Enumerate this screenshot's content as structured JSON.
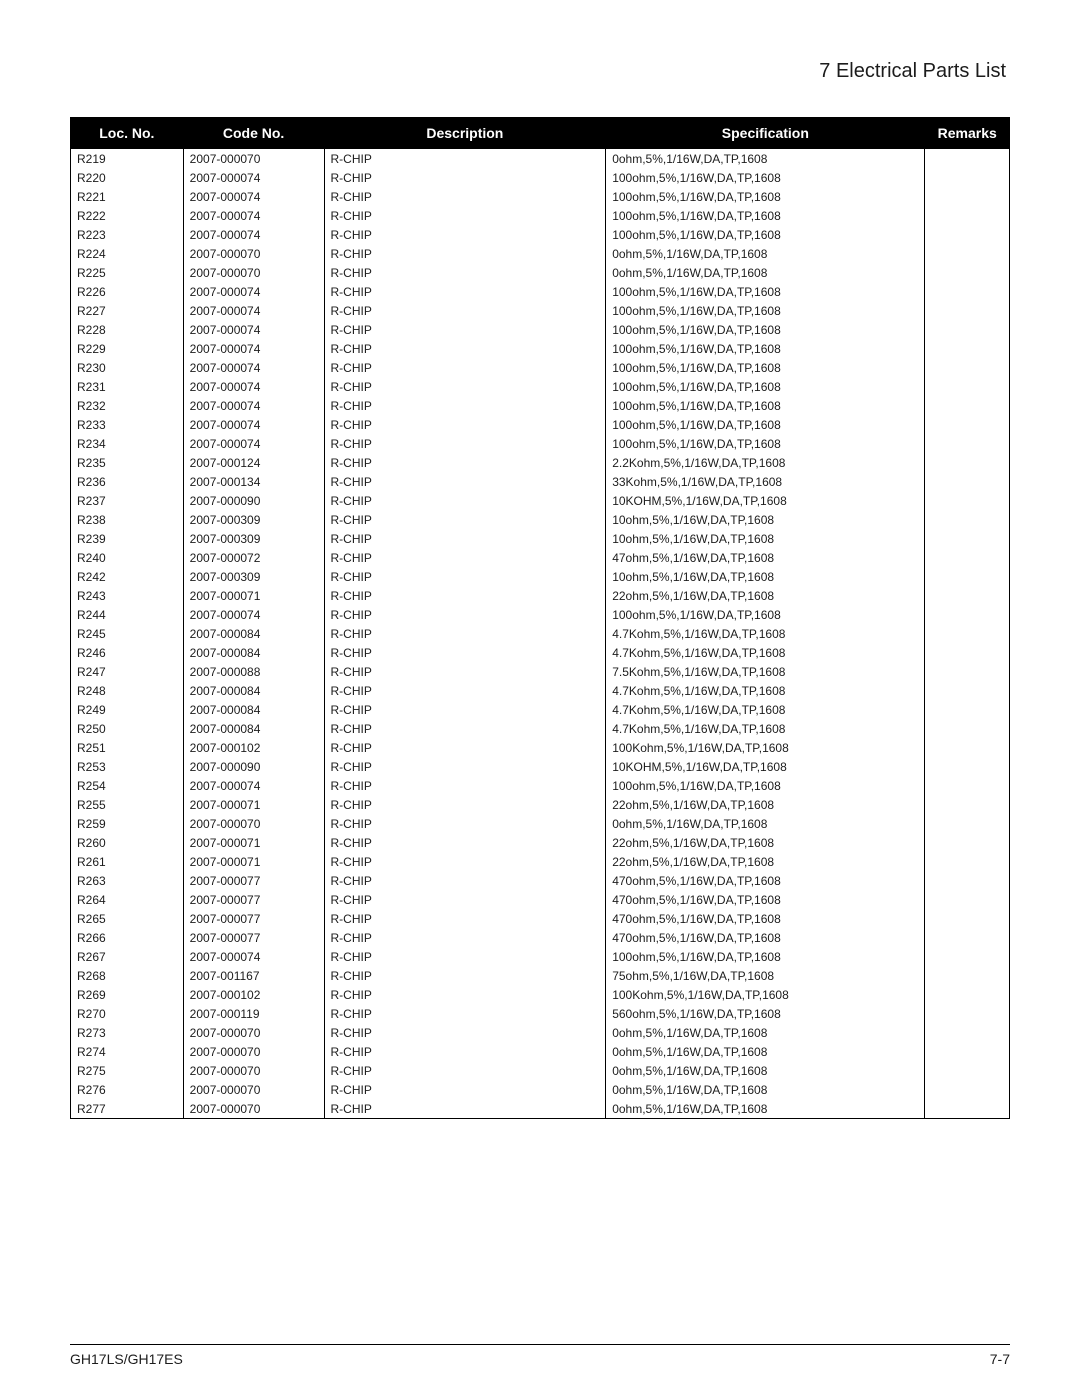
{
  "page": {
    "section_title": "7 Electrical Parts List",
    "footer_left": "GH17LS/GH17ES",
    "footer_right": "7-7"
  },
  "table": {
    "columns": {
      "loc": "Loc. No.",
      "code": "Code No.",
      "desc": "Description",
      "spec": "Specification",
      "rem": "Remarks"
    },
    "col_widths_pct": [
      12,
      15,
      30,
      34,
      9
    ],
    "header_bg": "#000000",
    "header_fg": "#ffffff",
    "border_color": "#000000",
    "body_font_size_pt": 9,
    "header_font_size_pt": 10.5,
    "rows": [
      {
        "loc": "R219",
        "code": "2007-000070",
        "desc": "R-CHIP",
        "spec": "0ohm,5%,1/16W,DA,TP,1608",
        "rem": ""
      },
      {
        "loc": "R220",
        "code": "2007-000074",
        "desc": "R-CHIP",
        "spec": "100ohm,5%,1/16W,DA,TP,1608",
        "rem": ""
      },
      {
        "loc": "R221",
        "code": "2007-000074",
        "desc": "R-CHIP",
        "spec": "100ohm,5%,1/16W,DA,TP,1608",
        "rem": ""
      },
      {
        "loc": "R222",
        "code": "2007-000074",
        "desc": "R-CHIP",
        "spec": "100ohm,5%,1/16W,DA,TP,1608",
        "rem": ""
      },
      {
        "loc": "R223",
        "code": "2007-000074",
        "desc": "R-CHIP",
        "spec": "100ohm,5%,1/16W,DA,TP,1608",
        "rem": ""
      },
      {
        "loc": "R224",
        "code": "2007-000070",
        "desc": "R-CHIP",
        "spec": "0ohm,5%,1/16W,DA,TP,1608",
        "rem": ""
      },
      {
        "loc": "R225",
        "code": "2007-000070",
        "desc": "R-CHIP",
        "spec": "0ohm,5%,1/16W,DA,TP,1608",
        "rem": ""
      },
      {
        "loc": "R226",
        "code": "2007-000074",
        "desc": "R-CHIP",
        "spec": "100ohm,5%,1/16W,DA,TP,1608",
        "rem": ""
      },
      {
        "loc": "R227",
        "code": "2007-000074",
        "desc": "R-CHIP",
        "spec": "100ohm,5%,1/16W,DA,TP,1608",
        "rem": ""
      },
      {
        "loc": "R228",
        "code": "2007-000074",
        "desc": "R-CHIP",
        "spec": "100ohm,5%,1/16W,DA,TP,1608",
        "rem": ""
      },
      {
        "loc": "R229",
        "code": "2007-000074",
        "desc": "R-CHIP",
        "spec": "100ohm,5%,1/16W,DA,TP,1608",
        "rem": ""
      },
      {
        "loc": "R230",
        "code": "2007-000074",
        "desc": "R-CHIP",
        "spec": "100ohm,5%,1/16W,DA,TP,1608",
        "rem": ""
      },
      {
        "loc": "R231",
        "code": "2007-000074",
        "desc": "R-CHIP",
        "spec": "100ohm,5%,1/16W,DA,TP,1608",
        "rem": ""
      },
      {
        "loc": "R232",
        "code": "2007-000074",
        "desc": "R-CHIP",
        "spec": "100ohm,5%,1/16W,DA,TP,1608",
        "rem": ""
      },
      {
        "loc": "R233",
        "code": "2007-000074",
        "desc": "R-CHIP",
        "spec": "100ohm,5%,1/16W,DA,TP,1608",
        "rem": ""
      },
      {
        "loc": "R234",
        "code": "2007-000074",
        "desc": "R-CHIP",
        "spec": "100ohm,5%,1/16W,DA,TP,1608",
        "rem": ""
      },
      {
        "loc": "R235",
        "code": "2007-000124",
        "desc": "R-CHIP",
        "spec": "2.2Kohm,5%,1/16W,DA,TP,1608",
        "rem": ""
      },
      {
        "loc": "R236",
        "code": "2007-000134",
        "desc": "R-CHIP",
        "spec": "33Kohm,5%,1/16W,DA,TP,1608",
        "rem": ""
      },
      {
        "loc": "R237",
        "code": "2007-000090",
        "desc": "R-CHIP",
        "spec": "10KOHM,5%,1/16W,DA,TP,1608",
        "rem": ""
      },
      {
        "loc": "R238",
        "code": "2007-000309",
        "desc": "R-CHIP",
        "spec": "10ohm,5%,1/16W,DA,TP,1608",
        "rem": ""
      },
      {
        "loc": "R239",
        "code": "2007-000309",
        "desc": "R-CHIP",
        "spec": "10ohm,5%,1/16W,DA,TP,1608",
        "rem": ""
      },
      {
        "loc": "R240",
        "code": "2007-000072",
        "desc": "R-CHIP",
        "spec": "47ohm,5%,1/16W,DA,TP,1608",
        "rem": ""
      },
      {
        "loc": "R242",
        "code": "2007-000309",
        "desc": "R-CHIP",
        "spec": "10ohm,5%,1/16W,DA,TP,1608",
        "rem": ""
      },
      {
        "loc": "R243",
        "code": "2007-000071",
        "desc": "R-CHIP",
        "spec": "22ohm,5%,1/16W,DA,TP,1608",
        "rem": ""
      },
      {
        "loc": "R244",
        "code": "2007-000074",
        "desc": "R-CHIP",
        "spec": "100ohm,5%,1/16W,DA,TP,1608",
        "rem": ""
      },
      {
        "loc": "R245",
        "code": "2007-000084",
        "desc": "R-CHIP",
        "spec": "4.7Kohm,5%,1/16W,DA,TP,1608",
        "rem": ""
      },
      {
        "loc": "R246",
        "code": "2007-000084",
        "desc": "R-CHIP",
        "spec": "4.7Kohm,5%,1/16W,DA,TP,1608",
        "rem": ""
      },
      {
        "loc": "R247",
        "code": "2007-000088",
        "desc": "R-CHIP",
        "spec": "7.5Kohm,5%,1/16W,DA,TP,1608",
        "rem": ""
      },
      {
        "loc": "R248",
        "code": "2007-000084",
        "desc": "R-CHIP",
        "spec": "4.7Kohm,5%,1/16W,DA,TP,1608",
        "rem": ""
      },
      {
        "loc": "R249",
        "code": "2007-000084",
        "desc": "R-CHIP",
        "spec": "4.7Kohm,5%,1/16W,DA,TP,1608",
        "rem": ""
      },
      {
        "loc": "R250",
        "code": "2007-000084",
        "desc": "R-CHIP",
        "spec": "4.7Kohm,5%,1/16W,DA,TP,1608",
        "rem": ""
      },
      {
        "loc": "R251",
        "code": "2007-000102",
        "desc": "R-CHIP",
        "spec": "100Kohm,5%,1/16W,DA,TP,1608",
        "rem": ""
      },
      {
        "loc": "R253",
        "code": "2007-000090",
        "desc": "R-CHIP",
        "spec": "10KOHM,5%,1/16W,DA,TP,1608",
        "rem": ""
      },
      {
        "loc": "R254",
        "code": "2007-000074",
        "desc": "R-CHIP",
        "spec": "100ohm,5%,1/16W,DA,TP,1608",
        "rem": ""
      },
      {
        "loc": "R255",
        "code": "2007-000071",
        "desc": "R-CHIP",
        "spec": "22ohm,5%,1/16W,DA,TP,1608",
        "rem": ""
      },
      {
        "loc": "R259",
        "code": "2007-000070",
        "desc": "R-CHIP",
        "spec": "0ohm,5%,1/16W,DA,TP,1608",
        "rem": ""
      },
      {
        "loc": "R260",
        "code": "2007-000071",
        "desc": "R-CHIP",
        "spec": "22ohm,5%,1/16W,DA,TP,1608",
        "rem": ""
      },
      {
        "loc": "R261",
        "code": "2007-000071",
        "desc": "R-CHIP",
        "spec": "22ohm,5%,1/16W,DA,TP,1608",
        "rem": ""
      },
      {
        "loc": "R263",
        "code": "2007-000077",
        "desc": "R-CHIP",
        "spec": "470ohm,5%,1/16W,DA,TP,1608",
        "rem": ""
      },
      {
        "loc": "R264",
        "code": "2007-000077",
        "desc": "R-CHIP",
        "spec": "470ohm,5%,1/16W,DA,TP,1608",
        "rem": ""
      },
      {
        "loc": "R265",
        "code": "2007-000077",
        "desc": "R-CHIP",
        "spec": "470ohm,5%,1/16W,DA,TP,1608",
        "rem": ""
      },
      {
        "loc": "R266",
        "code": "2007-000077",
        "desc": "R-CHIP",
        "spec": "470ohm,5%,1/16W,DA,TP,1608",
        "rem": ""
      },
      {
        "loc": "R267",
        "code": "2007-000074",
        "desc": "R-CHIP",
        "spec": "100ohm,5%,1/16W,DA,TP,1608",
        "rem": ""
      },
      {
        "loc": "R268",
        "code": "2007-001167",
        "desc": "R-CHIP",
        "spec": "75ohm,5%,1/16W,DA,TP,1608",
        "rem": ""
      },
      {
        "loc": "R269",
        "code": "2007-000102",
        "desc": "R-CHIP",
        "spec": "100Kohm,5%,1/16W,DA,TP,1608",
        "rem": ""
      },
      {
        "loc": "R270",
        "code": "2007-000119",
        "desc": "R-CHIP",
        "spec": "560ohm,5%,1/16W,DA,TP,1608",
        "rem": ""
      },
      {
        "loc": "R273",
        "code": "2007-000070",
        "desc": "R-CHIP",
        "spec": "0ohm,5%,1/16W,DA,TP,1608",
        "rem": ""
      },
      {
        "loc": "R274",
        "code": "2007-000070",
        "desc": "R-CHIP",
        "spec": "0ohm,5%,1/16W,DA,TP,1608",
        "rem": ""
      },
      {
        "loc": "R275",
        "code": "2007-000070",
        "desc": "R-CHIP",
        "spec": "0ohm,5%,1/16W,DA,TP,1608",
        "rem": ""
      },
      {
        "loc": "R276",
        "code": "2007-000070",
        "desc": "R-CHIP",
        "spec": "0ohm,5%,1/16W,DA,TP,1608",
        "rem": ""
      },
      {
        "loc": "R277",
        "code": "2007-000070",
        "desc": "R-CHIP",
        "spec": "0ohm,5%,1/16W,DA,TP,1608",
        "rem": ""
      }
    ]
  }
}
